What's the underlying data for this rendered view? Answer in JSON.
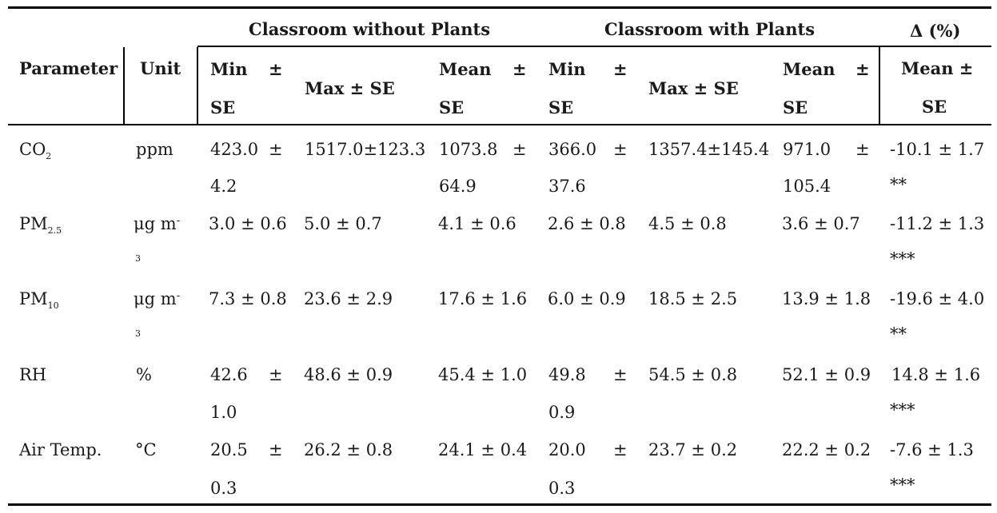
{
  "header": {
    "group_without": "Classroom without Plants",
    "group_with": "Classroom with Plants",
    "delta": "Δ (%)",
    "parameter": "Parameter",
    "unit": "Unit",
    "min_se_a": "Min",
    "pm_a": "±",
    "se_a": "SE",
    "max_se": "Max ± SE",
    "mean_a": "Mean",
    "pm_b": "±",
    "se_b": "SE",
    "min_b": "Min",
    "pm_c": "±",
    "se_c": "SE",
    "max_se_b": "Max ± SE",
    "mean_b": "Mean",
    "pm_d": "±",
    "se_d": "SE",
    "delta_mean": "Mean ±",
    "delta_se": "SE"
  },
  "rows": [
    {
      "param": "CO",
      "param_sub": "2",
      "unit": "ppm",
      "min_a_1": "423.0",
      "min_a_pm": "±",
      "min_a_2": "4.2",
      "max_a": "1517.0±123.3",
      "mean_a_1": "1073.8",
      "mean_a_pm": "±",
      "mean_a_2": "64.9",
      "min_b_1": "366.0",
      "min_b_pm": "±",
      "min_b_2": "37.6",
      "max_b": "1357.4±145.4",
      "mean_b_1": "971.0",
      "mean_b_pm": "±",
      "mean_b_2": "105.4",
      "delta_1": "-10.1 ± 1.7",
      "delta_2": "**"
    },
    {
      "param": "PM",
      "param_sub": "2.5",
      "unit_1": "μg m",
      "unit_2": "-",
      "unit_3": "3",
      "min_a": "3.0 ± 0.6",
      "max_a": "5.0 ± 0.7",
      "mean_a": "4.1 ± 0.6",
      "min_b": "2.6 ± 0.8",
      "max_b": "4.5 ± 0.8",
      "mean_b": "3.6 ± 0.7",
      "delta_1": "-11.2 ± 1.3",
      "delta_2": "***"
    },
    {
      "param": "PM",
      "param_sub": "10",
      "unit_1": "μg m",
      "unit_2": "-",
      "unit_3": "3",
      "min_a": "7.3 ± 0.8",
      "max_a": "23.6 ± 2.9",
      "mean_a": "17.6 ± 1.6",
      "min_b": "6.0 ± 0.9",
      "max_b": "18.5 ± 2.5",
      "mean_b": "13.9 ± 1.8",
      "delta_1": "-19.6 ± 4.0",
      "delta_2": "**"
    },
    {
      "param": "RH",
      "unit": "%",
      "min_a_1": "42.6",
      "min_a_pm": "±",
      "min_a_2": "1.0",
      "max_a": "48.6 ± 0.9",
      "mean_a": "45.4 ± 1.0",
      "min_b_1": "49.8",
      "min_b_pm": "±",
      "min_b_2": "0.9",
      "max_b": "54.5 ± 0.8",
      "mean_b": "52.1 ± 0.9",
      "delta_1": "14.8 ± 1.6",
      "delta_2": "***"
    },
    {
      "param": "Air Temp.",
      "unit": "°C",
      "min_a_1": "20.5",
      "min_a_pm": "±",
      "min_a_2": "0.3",
      "max_a": "26.2 ± 0.8",
      "mean_a": "24.1 ± 0.4",
      "min_b_1": "20.0",
      "min_b_pm": "±",
      "min_b_2": "0.3",
      "max_b": "23.7 ± 0.2",
      "mean_b": "22.2 ± 0.2",
      "delta_1": "-7.6 ± 1.3",
      "delta_2": "***"
    }
  ]
}
